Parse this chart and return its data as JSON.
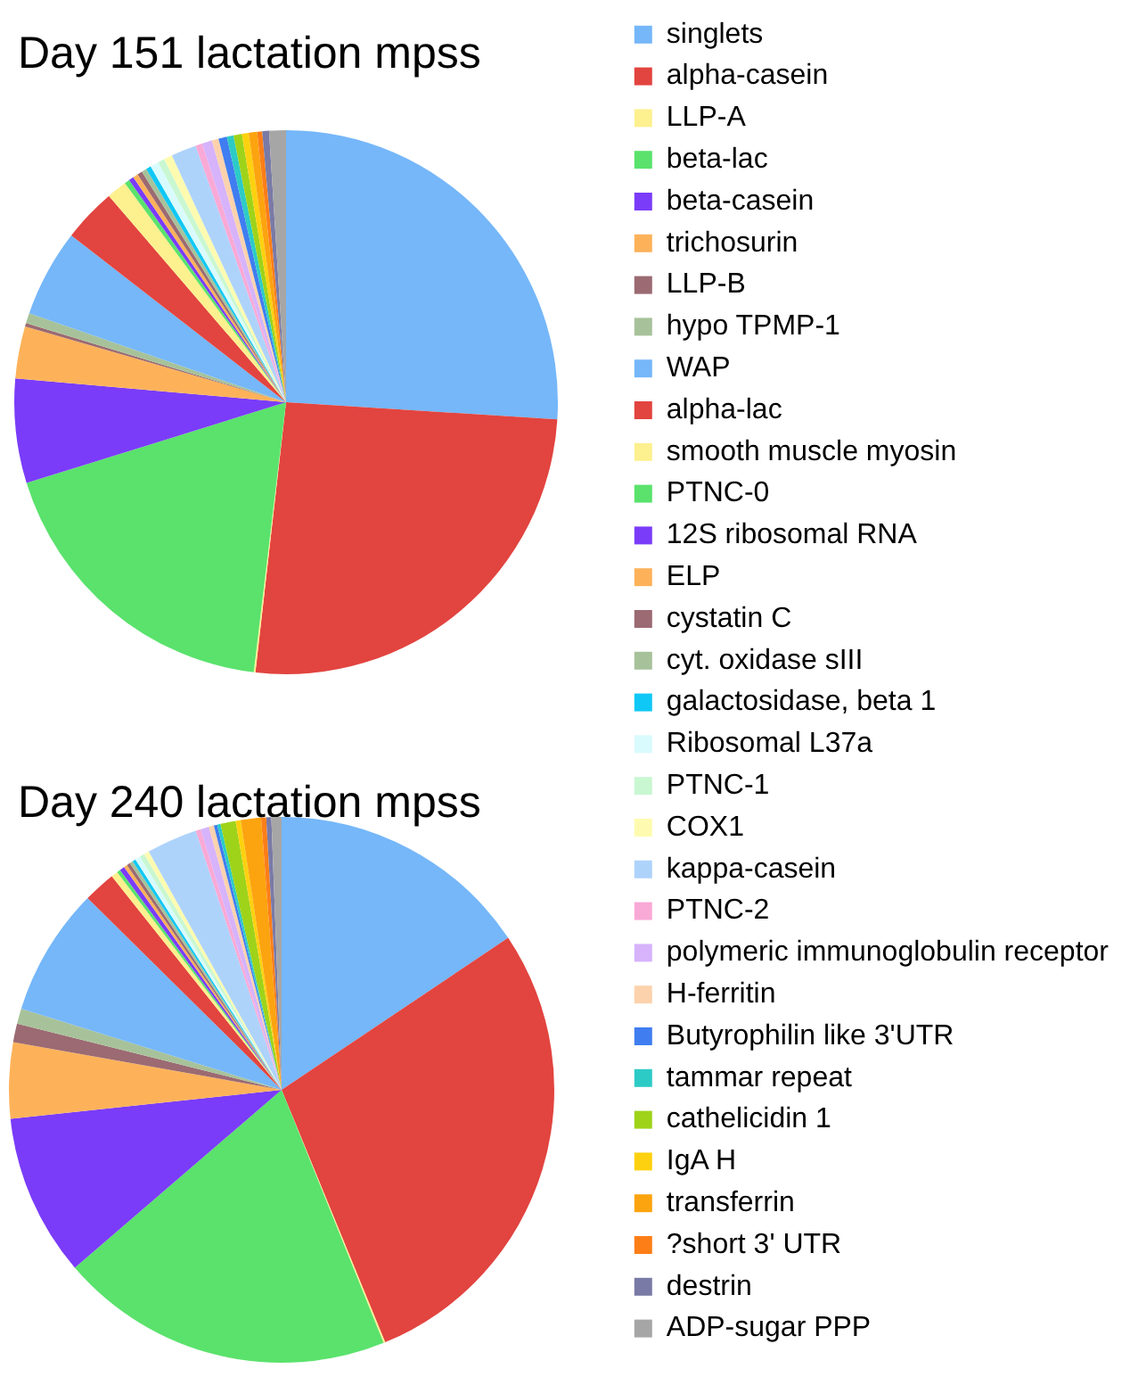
{
  "chart_data": [
    {
      "type": "pie",
      "title": "Day 151 lactation mpss",
      "legend": "right",
      "categories": [
        "singlets",
        "alpha-casein",
        "LLP-A",
        "beta-lac",
        "beta-casein",
        "trichosurin",
        "LLP-B",
        "hypo TPMP-1",
        "WAP",
        "alpha-lac",
        "smooth muscle myosin",
        "PTNC-0",
        "12S ribosomal RNA",
        "ELP",
        "cystatin C",
        "cyt. oxidase sIII",
        "galactosidase, beta 1",
        "Ribosomal L37a",
        "PTNC-1",
        "COX1",
        "kappa-casein",
        "PTNC-2",
        "polymeric immunoglobulin receptor",
        "H-ferritin",
        "Butyrophilin like 3'UTR",
        "tammar repeat",
        "cathelicidin 1",
        "IgA H",
        "transferrin",
        "?short 3' UTR",
        "destrin",
        "ADP-sugar PPP"
      ],
      "values": [
        26,
        25.8,
        0.1,
        18.3,
        6.2,
        3.1,
        0.2,
        0.6,
        5.2,
        3.2,
        1.2,
        0.3,
        0.3,
        0.3,
        0.3,
        0.3,
        0.3,
        0.5,
        0.4,
        0.5,
        1.5,
        0.4,
        0.6,
        0.4,
        0.5,
        0.4,
        0.5,
        0.4,
        0.5,
        0.3,
        0.4,
        1.0
      ],
      "colors": [
        "#75b7f9",
        "#e2443f",
        "#fdf08f",
        "#5ae26c",
        "#7a3cf8",
        "#fdb25a",
        "#9b6a72",
        "#a7c29a",
        "#75b7f9",
        "#e2443f",
        "#fdf08f",
        "#5ae26c",
        "#7a3cf8",
        "#fdb25a",
        "#9b6a72",
        "#a7c29a",
        "#10c8f5",
        "#d9fbfd",
        "#c9f7d2",
        "#fefbb0",
        "#aed3fb",
        "#f9a9d6",
        "#d6b3fb",
        "#fcd2ad",
        "#3f7df0",
        "#2dcbc6",
        "#9ed31a",
        "#fdd10f",
        "#fca40f",
        "#fd7e17",
        "#7a7aa6",
        "#a6a6a6"
      ]
    },
    {
      "type": "pie",
      "title": "Day 240 lactation mpss",
      "categories": [
        null,
        null,
        null,
        null,
        null,
        null,
        null,
        null,
        null,
        null,
        null,
        null,
        null,
        null,
        null,
        null,
        null,
        null,
        null,
        null,
        null,
        null,
        null,
        null,
        null,
        null,
        null,
        null,
        null,
        null,
        null,
        null
      ],
      "values": [
        15.6,
        28.2,
        0.1,
        19.8,
        9.6,
        4.5,
        1.1,
        0.9,
        7.6,
        1.9,
        0.4,
        0.2,
        0.3,
        0.2,
        0.2,
        0.2,
        0.2,
        0.3,
        0.3,
        0.3,
        3.0,
        0.3,
        0.5,
        0.3,
        0.2,
        0.2,
        0.9,
        0.3,
        1.2,
        0.3,
        0.3,
        0.6
      ],
      "colors": [
        "#75b7f9",
        "#e2443f",
        "#fdf08f",
        "#5ae26c",
        "#7a3cf8",
        "#fdb25a",
        "#9b6a72",
        "#a7c29a",
        "#75b7f9",
        "#e2443f",
        "#fdf08f",
        "#5ae26c",
        "#7a3cf8",
        "#fdb25a",
        "#9b6a72",
        "#a7c29a",
        "#10c8f5",
        "#d9fbfd",
        "#c9f7d2",
        "#fefbb0",
        "#aed3fb",
        "#f9a9d6",
        "#d6b3fb",
        "#fcd2ad",
        "#3f7df0",
        "#2dcbc6",
        "#9ed31a",
        "#fdd10f",
        "#fca40f",
        "#fd7e17",
        "#7a7aa6",
        "#a6a6a6"
      ]
    }
  ]
}
